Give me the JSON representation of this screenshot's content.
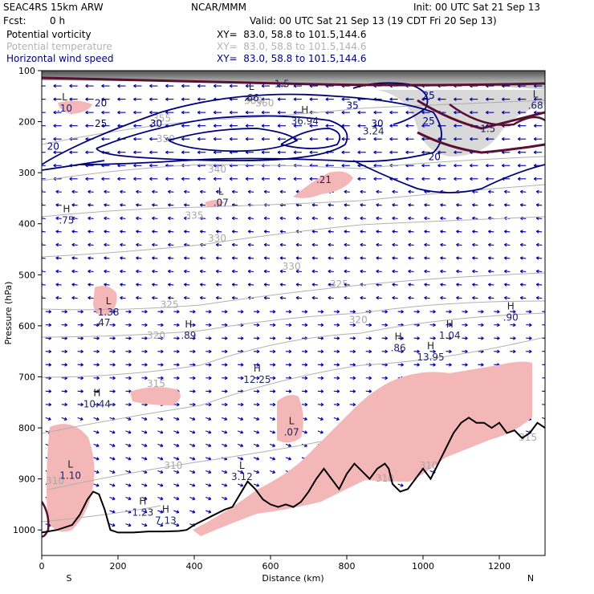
{
  "header": {
    "model": "SEAC4RS 15km ARW",
    "org": "NCAR/MMM",
    "init": "Init: 00 UTC Sat 21 Sep 13",
    "fcst_label": "Fcst:",
    "fcst_value": "0 h",
    "valid": "Valid: 00 UTC Sat 21 Sep 13 (19 CDT Fri 20 Sep 13)",
    "fields": [
      {
        "name": "Potential vorticity",
        "xy": "XY=  83.0, 58.8 to 101.5,144.6",
        "color": "#000000"
      },
      {
        "name": "Potential temperature",
        "xy": "XY=  83.0, 58.8 to 101.5,144.6",
        "color": "#b3b3b3"
      },
      {
        "name": "Horizontal wind speed",
        "xy": "XY=  83.0, 58.8 to 101.5,144.6",
        "color": "#00007a"
      }
    ]
  },
  "chart_data": {
    "type": "cross-section",
    "xlabel": "Distance (km)",
    "ylabel": "Pressure (hPa)",
    "xlim": [
      0,
      1320
    ],
    "ylim": [
      1050,
      100
    ],
    "x_ticks": [
      0,
      200,
      400,
      600,
      800,
      1000,
      1200
    ],
    "y_ticks": [
      100,
      200,
      300,
      400,
      500,
      600,
      700,
      800,
      900,
      1000
    ],
    "x_end_labels": {
      "left": "S",
      "right": "N"
    },
    "terrain": {
      "x": [
        0,
        40,
        80,
        100,
        120,
        135,
        150,
        165,
        180,
        200,
        240,
        280,
        320,
        360,
        380,
        400,
        440,
        480,
        500,
        520,
        540,
        560,
        580,
        600,
        620,
        640,
        660,
        680,
        700,
        720,
        740,
        760,
        780,
        800,
        820,
        840,
        860,
        880,
        900,
        910,
        920,
        940,
        960,
        980,
        1000,
        1020,
        1040,
        1060,
        1080,
        1100,
        1120,
        1140,
        1160,
        1180,
        1200,
        1220,
        1240,
        1260,
        1280,
        1300,
        1320
      ],
      "p": [
        1005,
        1000,
        990,
        970,
        940,
        925,
        930,
        960,
        1000,
        1005,
        1005,
        1003,
        1003,
        1002,
        1000,
        990,
        975,
        960,
        955,
        930,
        905,
        920,
        940,
        950,
        955,
        950,
        955,
        945,
        925,
        900,
        880,
        900,
        920,
        890,
        870,
        885,
        900,
        880,
        870,
        880,
        910,
        925,
        920,
        900,
        880,
        900,
        870,
        840,
        810,
        790,
        780,
        790,
        790,
        800,
        790,
        810,
        805,
        820,
        810,
        790,
        800
      ]
    },
    "theta_contours": [
      {
        "label": "310",
        "x": 345,
        "p": 880
      },
      {
        "label": "315",
        "x": 300,
        "p": 720
      },
      {
        "label": "320",
        "x": 300,
        "p": 625
      },
      {
        "label": "325",
        "x": 335,
        "p": 565
      },
      {
        "label": "325",
        "x": 780,
        "p": 525
      },
      {
        "label": "330",
        "x": 655,
        "p": 490
      },
      {
        "label": "330",
        "x": 460,
        "p": 435
      },
      {
        "label": "335",
        "x": 400,
        "p": 390
      },
      {
        "label": "340",
        "x": 460,
        "p": 300
      },
      {
        "label": "350",
        "x": 325,
        "p": 240
      },
      {
        "label": "355",
        "x": 315,
        "p": 200
      },
      {
        "label": "360",
        "x": 585,
        "p": 170
      },
      {
        "label": "380",
        "x": 555,
        "p": 165
      },
      {
        "label": "320",
        "x": 830,
        "p": 595
      },
      {
        "label": "315",
        "x": 1275,
        "p": 825
      },
      {
        "label": "310",
        "x": 1015,
        "p": 880
      },
      {
        "label": "310",
        "x": 900,
        "p": 905
      },
      {
        "label": "310",
        "x": 35,
        "p": 910
      }
    ],
    "wind_speed_contours": [
      {
        "label": "20",
        "x": 155,
        "p": 170
      },
      {
        "label": "25",
        "x": 155,
        "p": 210
      },
      {
        "label": "30",
        "x": 300,
        "p": 210
      },
      {
        "label": "35",
        "x": 815,
        "p": 175
      },
      {
        "label": "30",
        "x": 880,
        "p": 210
      },
      {
        "label": "25",
        "x": 1015,
        "p": 155
      },
      {
        "label": "25",
        "x": 1015,
        "p": 205
      },
      {
        "label": "20",
        "x": 1030,
        "p": 275
      },
      {
        "label": "20",
        "x": 30,
        "p": 255
      }
    ],
    "extrema": [
      {
        "type": "L",
        "value": ".10",
        "x": 60,
        "p": 180
      },
      {
        "type": "H",
        "value": "36.94",
        "x": 690,
        "p": 205
      },
      {
        "type": "L",
        "value": ".66",
        "x": 550,
        "p": 160
      },
      {
        "type": "",
        "value": "3.24",
        "x": 870,
        "p": 225
      },
      {
        "type": "L",
        "value": ".68",
        "x": 1295,
        "p": 175
      },
      {
        "type": "",
        "value": "1.5",
        "x": 1170,
        "p": 220
      },
      {
        "type": "",
        "value": "1.5",
        "x": 630,
        "p": 132
      },
      {
        "type": "",
        "value": ".21",
        "x": 740,
        "p": 320
      },
      {
        "type": "L",
        "value": ".07",
        "x": 470,
        "p": 365
      },
      {
        "type": "H",
        "value": ".75",
        "x": 65,
        "p": 400
      },
      {
        "type": "L",
        "value": "1.38",
        "x": 175,
        "p": 580
      },
      {
        "type": "",
        "value": ".47",
        "x": 160,
        "p": 600
      },
      {
        "type": "H",
        "value": ".89",
        "x": 385,
        "p": 625
      },
      {
        "type": "H",
        "value": ".90",
        "x": 1230,
        "p": 590
      },
      {
        "type": "H",
        "value": "1.04",
        "x": 1070,
        "p": 625
      },
      {
        "type": "H",
        "value": "13.95",
        "x": 1020,
        "p": 668
      },
      {
        "type": "H",
        "value": ".86",
        "x": 935,
        "p": 650
      },
      {
        "type": "H",
        "value": "12.25",
        "x": 565,
        "p": 712
      },
      {
        "type": "H",
        "value": "10.44",
        "x": 145,
        "p": 760
      },
      {
        "type": "L",
        "value": ".07",
        "x": 655,
        "p": 815
      },
      {
        "type": "L",
        "value": "1.10",
        "x": 75,
        "p": 900
      },
      {
        "type": "L",
        "value": "3.12",
        "x": 525,
        "p": 902
      },
      {
        "type": "H",
        "value": "1.23",
        "x": 265,
        "p": 972
      },
      {
        "type": "H",
        "value": "7.13",
        "x": 325,
        "p": 988
      }
    ]
  }
}
